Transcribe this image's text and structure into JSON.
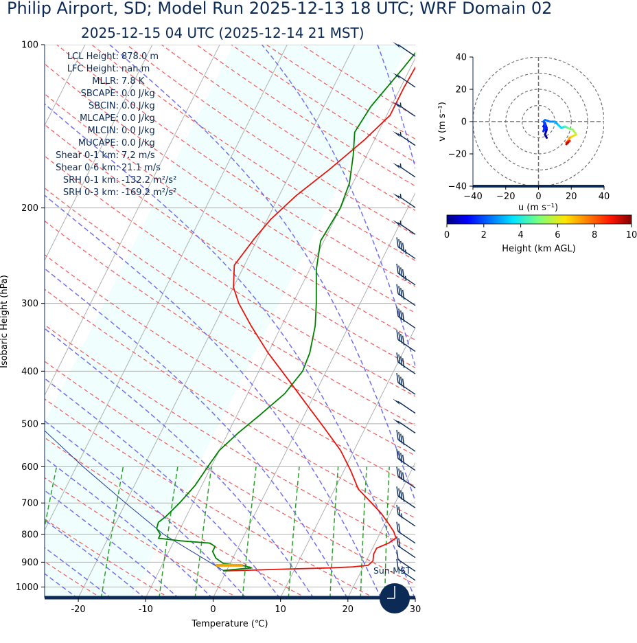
{
  "title": "Philip Airport, SD; Model Run 2025-12-13 18 UTC; WRF Domain 02",
  "subtitle": "2025-12-15 04 UTC  (2025-12-14 21 MST)",
  "stats": [
    {
      "label": "LCL Height:",
      "value": "878.0 m"
    },
    {
      "label": "LFC Height:",
      "value": "nan m"
    },
    {
      "label": "MLLR:",
      "value": "7.8 K"
    },
    {
      "label": "SBCAPE:",
      "value": "0.0 J/kg"
    },
    {
      "label": "SBCIN:",
      "value": "0.0 J/kg"
    },
    {
      "label": "MLCAPE:",
      "value": "0.0 J/kg"
    },
    {
      "label": "MLCIN:",
      "value": "0.0 J/kg"
    },
    {
      "label": "MUCAPE:",
      "value": "0.0 J/kg"
    },
    {
      "label": "Shear 0-1 km:",
      "value": "7.2 m/s"
    },
    {
      "label": "Shear 0-6 km:",
      "value": "21.1 m/s"
    },
    {
      "label": "SRH 0-1 km:",
      "value": "-132.2 m²/s²"
    },
    {
      "label": "SRH 0-3 km:",
      "value": "-169.2 m²/s²"
    }
  ],
  "clock_label": "Sun-MST",
  "colors": {
    "temperature": "#e8130d",
    "dewpoint": "#008000",
    "parcel": "#1f3c99",
    "dry_adiabat": "#f06565",
    "moist_adiabat": "#7070f0",
    "mixing_ratio": "#2ca02c",
    "isotherm": "#b0b0b0",
    "isobar": "#b0b0b0",
    "barb": "#0b2a55",
    "shade": "#f0fffd",
    "lcl_marker": "#f0a30a",
    "frame": "#0b2a55"
  },
  "chart_data": [
    {
      "type": "line",
      "name": "skew-t",
      "xlabel": "Temperature (℃)",
      "ylabel": "Isobaric Height (hPa)",
      "xlim": [
        -25,
        30
      ],
      "ylim": [
        1050,
        100
      ],
      "xticks": [
        -20,
        -10,
        0,
        10,
        20,
        30
      ],
      "yticks": [
        100,
        200,
        300,
        400,
        500,
        600,
        700,
        800,
        900,
        1000
      ],
      "temperature": [
        {
          "p": 934,
          "t": -0.5
        },
        {
          "p": 928,
          "t": 7
        },
        {
          "p": 922,
          "t": 15
        },
        {
          "p": 918,
          "t": 18.5
        },
        {
          "p": 912,
          "t": 20.6
        },
        {
          "p": 895,
          "t": 21
        },
        {
          "p": 870,
          "t": 20.6
        },
        {
          "p": 848,
          "t": 20.6
        },
        {
          "p": 830,
          "t": 22
        },
        {
          "p": 812,
          "t": 22.7
        },
        {
          "p": 790,
          "t": 21.9
        },
        {
          "p": 765,
          "t": 20.6
        },
        {
          "p": 730,
          "t": 18.6
        },
        {
          "p": 700,
          "t": 16.5
        },
        {
          "p": 660,
          "t": 13.5
        },
        {
          "p": 610,
          "t": 11
        },
        {
          "p": 560,
          "t": 8
        },
        {
          "p": 510,
          "t": 4
        },
        {
          "p": 460,
          "t": -0.5
        },
        {
          "p": 410,
          "t": -5.5
        },
        {
          "p": 370,
          "t": -10
        },
        {
          "p": 330,
          "t": -14.5
        },
        {
          "p": 300,
          "t": -18
        },
        {
          "p": 280,
          "t": -20
        },
        {
          "p": 255,
          "t": -21.5
        },
        {
          "p": 228,
          "t": -20.5
        },
        {
          "p": 210,
          "t": -19.5
        },
        {
          "p": 190,
          "t": -17.5
        },
        {
          "p": 170,
          "t": -14.5
        },
        {
          "p": 150,
          "t": -11.5
        },
        {
          "p": 135,
          "t": -9.5
        },
        {
          "p": 120,
          "t": -9.5
        },
        {
          "p": 110,
          "t": -9.3
        },
        {
          "p": 100,
          "t": -9
        }
      ],
      "dewpoint": [
        {
          "p": 932,
          "t": -0.5
        },
        {
          "p": 922,
          "t": 3.5
        },
        {
          "p": 915,
          "t": 2.5
        },
        {
          "p": 905,
          "t": -1
        },
        {
          "p": 885,
          "t": -2.5
        },
        {
          "p": 860,
          "t": -3.5
        },
        {
          "p": 842,
          "t": -3.5
        },
        {
          "p": 830,
          "t": -4.5
        },
        {
          "p": 822,
          "t": -9
        },
        {
          "p": 813,
          "t": -12.5
        },
        {
          "p": 800,
          "t": -12.5
        },
        {
          "p": 780,
          "t": -13.5
        },
        {
          "p": 760,
          "t": -13.7
        },
        {
          "p": 740,
          "t": -13
        },
        {
          "p": 700,
          "t": -12
        },
        {
          "p": 650,
          "t": -11
        },
        {
          "p": 600,
          "t": -10.5
        },
        {
          "p": 560,
          "t": -10
        },
        {
          "p": 520,
          "t": -8.5
        },
        {
          "p": 480,
          "t": -6.5
        },
        {
          "p": 440,
          "t": -4.5
        },
        {
          "p": 400,
          "t": -3.5
        },
        {
          "p": 370,
          "t": -3.8
        },
        {
          "p": 330,
          "t": -5
        },
        {
          "p": 300,
          "t": -6.5
        },
        {
          "p": 260,
          "t": -9
        },
        {
          "p": 230,
          "t": -10.5
        },
        {
          "p": 200,
          "t": -10
        },
        {
          "p": 180,
          "t": -10.5
        },
        {
          "p": 160,
          "t": -12
        },
        {
          "p": 145,
          "t": -13.5
        },
        {
          "p": 130,
          "t": -13
        },
        {
          "p": 110,
          "t": -11
        },
        {
          "p": 100,
          "t": -10
        }
      ],
      "parcel": [
        {
          "p": 932,
          "t": -0.5
        },
        {
          "p": 878,
          "t": -5
        },
        {
          "p": 800,
          "t": -12
        },
        {
          "p": 700,
          "t": -20
        },
        {
          "p": 600,
          "t": -29
        },
        {
          "p": 500,
          "t": -39
        },
        {
          "p": 400,
          "t": -52
        },
        {
          "p": 350,
          "t": -60
        }
      ],
      "lcl_marker": {
        "p": 912,
        "t_from": -2,
        "t_to": 2
      },
      "wind_barbs_kt": [
        {
          "p": 100,
          "kt": 50
        },
        {
          "p": 114,
          "kt": 50
        },
        {
          "p": 129,
          "kt": 55
        },
        {
          "p": 146,
          "kt": 55
        },
        {
          "p": 167,
          "kt": 55
        },
        {
          "p": 190,
          "kt": 55
        },
        {
          "p": 213,
          "kt": 55
        },
        {
          "p": 236,
          "kt": 45
        },
        {
          "p": 264,
          "kt": 45
        },
        {
          "p": 288,
          "kt": 40
        },
        {
          "p": 317,
          "kt": 40
        },
        {
          "p": 350,
          "kt": 40
        },
        {
          "p": 385,
          "kt": 40
        },
        {
          "p": 420,
          "kt": 40
        },
        {
          "p": 455,
          "kt": 50
        },
        {
          "p": 495,
          "kt": 50
        },
        {
          "p": 535,
          "kt": 40
        },
        {
          "p": 580,
          "kt": 40
        },
        {
          "p": 625,
          "kt": 40
        },
        {
          "p": 680,
          "kt": 40
        },
        {
          "p": 735,
          "kt": 25
        },
        {
          "p": 790,
          "kt": 20
        },
        {
          "p": 840,
          "kt": 20
        },
        {
          "p": 890,
          "kt": 10
        },
        {
          "p": 925,
          "kt": 10
        }
      ]
    },
    {
      "type": "line",
      "name": "hodograph",
      "xlabel": "u (m s⁻¹)",
      "ylabel": "v (m s⁻¹)",
      "xlim": [
        -40,
        40
      ],
      "ylim": [
        -40,
        40
      ],
      "ticks": [
        -40,
        -20,
        0,
        20,
        40
      ],
      "rings": [
        10,
        20,
        30,
        40
      ],
      "colorbar": {
        "label": "Height (km AGL)",
        "range": [
          0,
          10
        ],
        "ticks": [
          0,
          2,
          4,
          6,
          8,
          10
        ]
      },
      "points": [
        {
          "u": 5,
          "v": -10,
          "h": 0.0
        },
        {
          "u": 4,
          "v": -8,
          "h": 0.3
        },
        {
          "u": 5,
          "v": -5,
          "h": 0.6
        },
        {
          "u": 3,
          "v": -3,
          "h": 0.9
        },
        {
          "u": 4,
          "v": -1,
          "h": 1.1
        },
        {
          "u": 5,
          "v": -4,
          "h": 1.3
        },
        {
          "u": 3,
          "v": -6,
          "h": 1.5
        },
        {
          "u": 4,
          "v": -2,
          "h": 1.7
        },
        {
          "u": 3,
          "v": 0,
          "h": 2.0
        },
        {
          "u": 4,
          "v": 1,
          "h": 2.2
        },
        {
          "u": 7,
          "v": 0,
          "h": 2.5
        },
        {
          "u": 10,
          "v": 0,
          "h": 2.8
        },
        {
          "u": 12,
          "v": -2,
          "h": 3.2
        },
        {
          "u": 14,
          "v": -4,
          "h": 3.6
        },
        {
          "u": 16,
          "v": -3,
          "h": 4.1
        },
        {
          "u": 18,
          "v": -4,
          "h": 4.7
        },
        {
          "u": 21,
          "v": -5,
          "h": 5.2
        },
        {
          "u": 23,
          "v": -8,
          "h": 5.8
        },
        {
          "u": 21,
          "v": -9,
          "h": 6.3
        },
        {
          "u": 19,
          "v": -10,
          "h": 6.9
        },
        {
          "u": 18,
          "v": -12,
          "h": 7.5
        },
        {
          "u": 17,
          "v": -13,
          "h": 8.1
        },
        {
          "u": 19,
          "v": -12,
          "h": 8.7
        },
        {
          "u": 18,
          "v": -13,
          "h": 9.3
        },
        {
          "u": 17,
          "v": -14,
          "h": 9.8
        }
      ]
    }
  ]
}
